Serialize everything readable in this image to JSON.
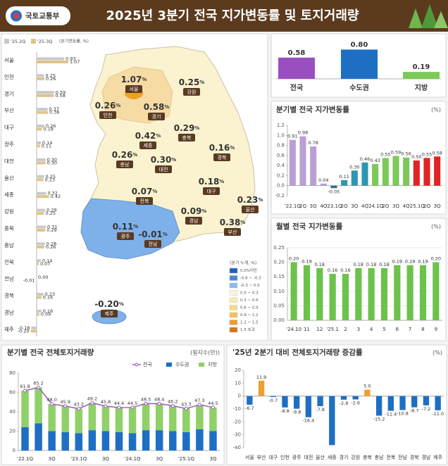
{
  "header": {
    "logo": "국토교통부",
    "title": "2025년 3분기 전국 지가변동률 및 토지거래량"
  },
  "map": {
    "value_suffix": "%",
    "legend_title": "(분기 누계, %)",
    "legend": [
      {
        "label": "0.0%미만",
        "color": "#1f5fc0"
      },
      {
        "label": "-0.6 ~ -0.3",
        "color": "#4a86da"
      },
      {
        "label": "-0.3 ~ 0.0",
        "color": "#8fb9ec"
      },
      {
        "label": "0.0 ~ 0.3",
        "color": "#fbf6dc"
      },
      {
        "label": "0.3 ~ 0.6",
        "color": "#f7ecb8"
      },
      {
        "label": "0.6 ~ 0.9",
        "color": "#f5dc8c"
      },
      {
        "label": "0.9 ~ 1.2",
        "color": "#f2c25a"
      },
      {
        "label": "1.2 ~ 1.5",
        "color": "#ee9c2a"
      },
      {
        "label": "1.5 초과",
        "color": "#d9731a"
      }
    ]
  },
  "chart_data": [
    {
      "type": "hbar",
      "unit": "(분기변동률, %)",
      "categories": [
        "서울",
        "인천",
        "경기",
        "부산",
        "대구",
        "광주",
        "대전",
        "울산",
        "세종",
        "강원",
        "충북",
        "충남",
        "전북",
        "전남",
        "경북",
        "경남",
        "제주"
      ],
      "series": [
        {
          "name": "'25.2Q",
          "color": "#c8c8c8",
          "values": [
            0.93,
            0.25,
            0.59,
            0.37,
            0.26,
            0.14,
            0.3,
            0.25,
            0.32,
            0.29,
            0.31,
            0.28,
            0.14,
            0.0,
            0.23,
            0.16,
            -0.18
          ],
          "value_labels": [
            "0.93",
            "0.25",
            "0.59",
            "0.37",
            "0.26",
            "0.14",
            "0.30",
            "0.25",
            "0.32",
            "0.29",
            "0.31",
            "0.28",
            "0.14",
            "0.00",
            "0.23",
            "0.16",
            "-0.18"
          ]
        },
        {
          "name": "'25.3Q",
          "color": "#e0c48a",
          "values": [
            1.07,
            0.26,
            0.58,
            0.38,
            0.18,
            0.11,
            0.3,
            0.23,
            0.42,
            0.25,
            0.29,
            0.26,
            0.07,
            -0.01,
            0.16,
            0.09,
            -0.2
          ],
          "value_labels": [
            "1.07",
            "0.26",
            "0.58",
            "0.38",
            "0.18",
            "0.11",
            "0.30",
            "0.23",
            "0.42",
            "0.25",
            "0.29",
            "0.26",
            "0.07",
            "-0.01",
            "0.16",
            "0.09",
            "-0.20"
          ]
        }
      ]
    },
    {
      "type": "bar",
      "categories": [
        "전국",
        "수도권",
        "지방"
      ],
      "values": [
        0.58,
        0.8,
        0.19
      ],
      "value_labels": [
        "0.58",
        "0.80",
        "0.19"
      ],
      "colors": [
        "#9a4fc0",
        "#1e6fc4",
        "#7cc95a"
      ]
    },
    {
      "type": "bar",
      "title": "분기별 전국 지가변동률",
      "unit": "(%)",
      "categories": [
        "'22.1Q",
        "2Q",
        "3Q",
        "4Q",
        "'23.1Q",
        "2Q",
        "3Q",
        "4Q",
        "'24.1Q",
        "2Q",
        "3Q",
        "4Q",
        "'25.1Q",
        "2Q",
        "3Q"
      ],
      "values": [
        0.91,
        0.98,
        0.78,
        0.04,
        -0.05,
        0.11,
        0.3,
        0.46,
        0.43,
        0.55,
        0.59,
        0.56,
        0.5,
        0.55,
        0.58
      ],
      "value_labels": [
        "0.91",
        "0.98",
        "0.78",
        "0.04",
        "-0.05",
        "0.11",
        "0.30",
        "0.46",
        "0.43",
        "0.55",
        "0.59",
        "0.56",
        "0.50",
        "0.55",
        "0.58"
      ],
      "colors": [
        "#b9a0d4",
        "#b9a0d4",
        "#b9a0d4",
        "#b9a0d4",
        "#2d6f8f",
        "#2f96b0",
        "#2f96b0",
        "#2f96b0",
        "#7cc95a",
        "#7cc95a",
        "#7cc95a",
        "#7cc95a",
        "#e02424",
        "#e02424",
        "#e02424"
      ],
      "ylim": [
        -0.2,
        1.2
      ],
      "yticks": [
        -0.2,
        {
          "value": 0,
          "label": "0.0"
        },
        0.2,
        0.4,
        0.6,
        0.8,
        {
          "value": 1,
          "label": "1.0"
        },
        1.2
      ],
      "grid": false
    },
    {
      "type": "bar",
      "title": "월별 전국 지가변동률",
      "unit": "(%)",
      "categories": [
        "'24.10",
        "11",
        "12",
        "'25.1",
        "2",
        "3",
        "4",
        "5",
        "6",
        "7",
        "8",
        "9"
      ],
      "values": [
        0.2,
        0.19,
        0.18,
        0.16,
        0.16,
        0.18,
        0.18,
        0.18,
        0.19,
        0.19,
        0.19,
        0.2
      ],
      "value_labels": [
        "0.20",
        "0.19",
        "0.18",
        "0.16",
        "0.16",
        "0.18",
        "0.18",
        "0.18",
        "0.19",
        "0.19",
        "0.19",
        "0.20"
      ],
      "color": "#6cc24a",
      "ylim": [
        0,
        0.25
      ],
      "yticks": [
        {
          "value": 0,
          "label": "0.00"
        },
        {
          "value": 0.05,
          "label": "0.05"
        },
        {
          "value": 0.1,
          "label": "0.10"
        },
        {
          "value": 0.15,
          "label": "0.15"
        },
        {
          "value": 0.2,
          "label": "0.20"
        },
        {
          "value": 0.25,
          "label": "0.25"
        }
      ],
      "grid": true
    },
    {
      "type": "bar",
      "title": "분기별 전국 전체토지거래량",
      "unit": "(필지수(만))",
      "stacked": true,
      "categories": [
        "'22.1Q",
        null,
        "3Q",
        null,
        "'23.1Q",
        null,
        "3Q",
        null,
        "'24.1Q",
        null,
        "3Q",
        null,
        "'25.1Q",
        null,
        "3Q"
      ],
      "series": [
        {
          "name": "전국",
          "type": "line",
          "color": "#a05cc0",
          "values": [
            61.8,
            65.2,
            48.0,
            45.9,
            43.2,
            49.2,
            45.8,
            44.4,
            44.5,
            48.5,
            48.4,
            46.2,
            43.3,
            47.3,
            44.5
          ],
          "value_labels": [
            "61.8",
            "65.2",
            "48.0",
            "45.9",
            "43.2",
            "49.2",
            "45.8",
            "44.4",
            "44.5",
            "48.5",
            "48.4",
            "46.2",
            "43.3",
            "47.3",
            "44.5"
          ]
        },
        {
          "name": "수도권",
          "color": "#1e6fc4",
          "values": [
            24,
            28,
            20,
            19,
            18,
            21,
            20,
            19,
            18,
            21,
            21,
            20,
            19,
            22,
            20
          ]
        },
        {
          "name": "지방",
          "color": "#8fd068",
          "values": [
            37.8,
            37.2,
            28.0,
            26.9,
            25.2,
            28.2,
            25.8,
            25.4,
            26.5,
            27.5,
            27.4,
            26.2,
            24.3,
            25.3,
            24.5
          ]
        }
      ],
      "ylim": [
        0,
        80
      ],
      "yticks": [
        0,
        20,
        40,
        60,
        80
      ],
      "grid": false
    },
    {
      "type": "bar",
      "title": "'25년 2분기 대비 전체토지거래량 증감률",
      "unit": "(%)",
      "categories": [
        "서울",
        "부산",
        "대구",
        "인천",
        "광주",
        "대전",
        "울산",
        "세종",
        "경기",
        "강원",
        "충북",
        "충남",
        "전북",
        "전남",
        "경북",
        "경남",
        "제주"
      ],
      "values": [
        -6.7,
        11.9,
        -0.7,
        -8.8,
        -9.8,
        -16.4,
        -7.8,
        -38,
        -2.8,
        -2.6,
        5.0,
        -15.2,
        -11.4,
        -10.8,
        -8.7,
        -7.2,
        -11.0
      ],
      "value_labels": [
        "-6.7",
        "11.9",
        "-0.7",
        "-8.8",
        "-9.8",
        "-16.4",
        "-7.8",
        null,
        "-2.8",
        "-2.6",
        "5.0",
        "-15.2",
        "-11.4",
        "-10.8",
        "-8.7",
        "-7.2",
        "-11.0"
      ],
      "color": "#1e6fc4",
      "positive_color": "#f0a030",
      "ylim": [
        -40,
        20
      ],
      "yticks": [
        20,
        10,
        0,
        -10,
        -20,
        -30,
        -40
      ],
      "grid": false
    }
  ]
}
